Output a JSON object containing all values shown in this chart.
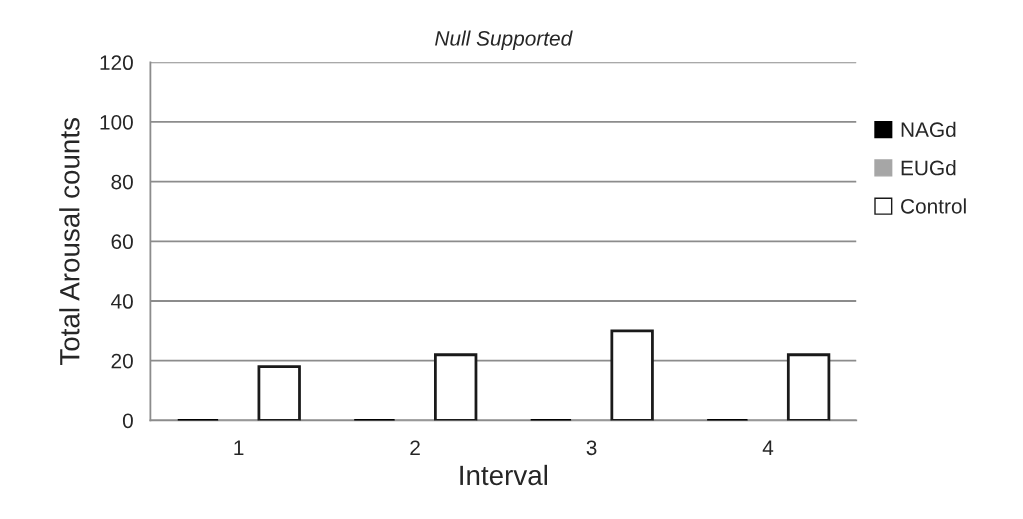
{
  "chart_data": {
    "type": "bar",
    "title": "Null Supported",
    "xlabel": "Interval",
    "ylabel": "Total Arousal counts",
    "categories": [
      "1",
      "2",
      "3",
      "4"
    ],
    "series": [
      {
        "name": "NAGd",
        "color": "#000000",
        "values": [
          0,
          0,
          0,
          0
        ]
      },
      {
        "name": "EUGd",
        "color": "#a6a6a6",
        "values": [
          0,
          0,
          0,
          0
        ]
      },
      {
        "name": "Control",
        "color": "#ffffff",
        "values": [
          18,
          22,
          30,
          22
        ]
      }
    ],
    "ylim": [
      0,
      120
    ],
    "yticks": [
      0,
      20,
      40,
      60,
      80,
      100,
      120
    ],
    "grid": "y",
    "legend": "right"
  }
}
